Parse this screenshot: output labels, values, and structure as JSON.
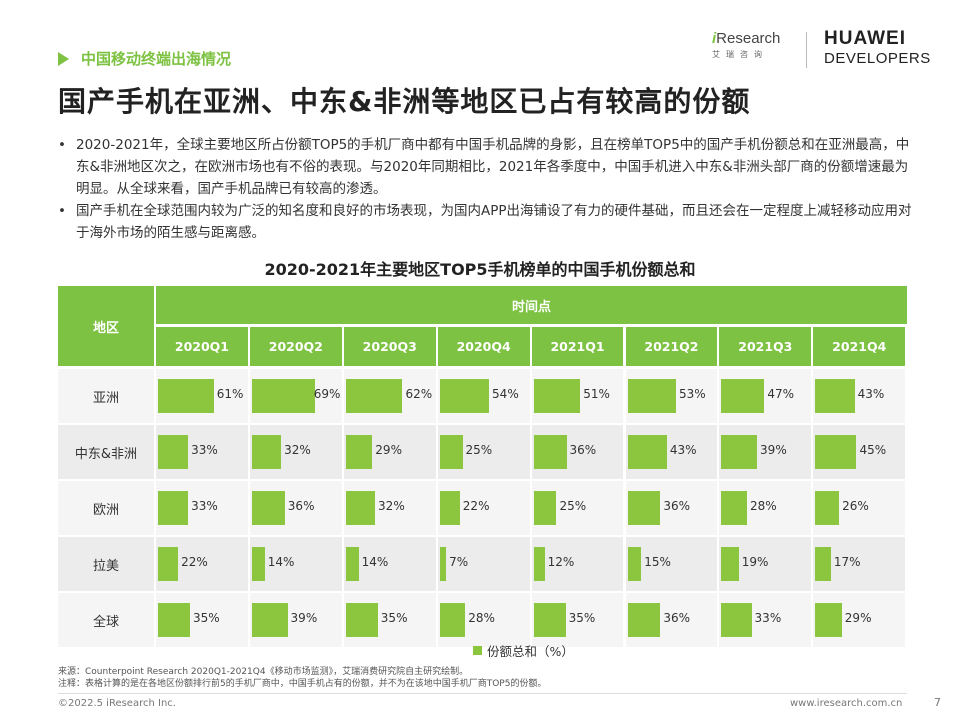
{
  "header": {
    "section": "中国移动终端出海情况",
    "title": "国产手机在亚洲、中东&非洲等地区已占有较高的份额",
    "logo_iresearch": "iResearch",
    "logo_iresearch_sub": "艾瑞咨询",
    "logo_huawei_line1": "HUAWEI",
    "logo_huawei_line2": "DEVELOPERS"
  },
  "bullets": [
    "2020-2021年，全球主要地区所占份额TOP5的手机厂商中都有中国手机品牌的身影，且在榜单TOP5中的国产手机份额总和在亚洲最高，中东&非洲地区次之，在欧洲市场也有不俗的表现。与2020年同期相比，2021年各季度中，中国手机进入中东&非洲头部厂商的份额增速最为明显。从全球来看，国产手机品牌已有较高的渗透。",
    "国产手机在全球范围内较为广泛的知名度和良好的市场表现，为国内APP出海铺设了有力的硬件基础，而且还会在一定程度上减轻移动应用对于海外市场的陌生感与距离感。"
  ],
  "bullet_marker": "•",
  "chart_data": {
    "type": "table",
    "title": "2020-2021年主要地区TOP5手机榜单的中国手机份额总和",
    "row_header": "地区",
    "column_group_header": "时间点",
    "columns": [
      "2020Q1",
      "2020Q2",
      "2020Q3",
      "2020Q4",
      "2021Q1",
      "2021Q2",
      "2021Q3",
      "2021Q4"
    ],
    "rows": [
      {
        "label": "亚洲",
        "values": [
          61,
          69,
          62,
          54,
          51,
          53,
          47,
          43
        ]
      },
      {
        "label": "中东&非洲",
        "values": [
          33,
          32,
          29,
          25,
          36,
          43,
          39,
          45
        ]
      },
      {
        "label": "欧洲",
        "values": [
          33,
          36,
          32,
          22,
          25,
          36,
          28,
          26
        ]
      },
      {
        "label": "拉美",
        "values": [
          22,
          14,
          14,
          7,
          12,
          15,
          19,
          17
        ]
      },
      {
        "label": "全球",
        "values": [
          35,
          39,
          35,
          28,
          35,
          36,
          33,
          29
        ]
      }
    ],
    "unit": "%",
    "legend": "份额总和（%）",
    "bar_color": "#8cc63f",
    "header_color": "#7dc242"
  },
  "footer": {
    "source_line1": "来源：Counterpoint Research 2020Q1-2021Q4《移动市场监测》，艾瑞消费研究院自主研究绘制。",
    "source_line2": "注释：表格计算的是在各地区份额排行前5的手机厂商中，中国手机占有的份额，并不为在该地中国手机厂商TOP5的份额。",
    "copyright": "©2022.5 iResearch Inc.",
    "website": "www.iresearch.com.cn",
    "page": "7"
  }
}
